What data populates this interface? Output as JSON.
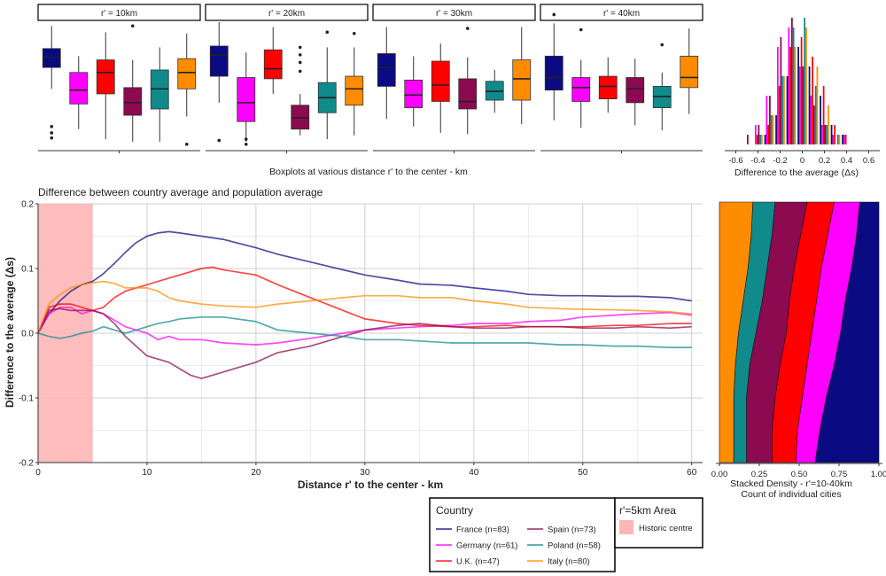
{
  "colors": {
    "France": "#0a0a82",
    "Germany": "#ff00ff",
    "UK": "#ff0000",
    "Spain": "#8b0a50",
    "Poland": "#108a8a",
    "Italy": "#ff8c00",
    "historic": "#ffb6b6"
  },
  "chart_data": [
    {
      "type": "boxplot",
      "id": "boxplots",
      "xlabel": "Boxplots at various distance r' to the center - km",
      "panels": [
        {
          "label": "r' = 10km",
          "boxes": [
            {
              "country": "France",
              "q1": 0.64,
              "median": 0.72,
              "q3": 0.79,
              "wlo": 0.47,
              "whi": 0.97,
              "outliers": [
                0.08,
                0.12,
                0.17
              ]
            },
            {
              "country": "Germany",
              "q1": 0.35,
              "median": 0.46,
              "q3": 0.6,
              "wlo": 0.15,
              "whi": 0.73,
              "outliers": []
            },
            {
              "country": "UK",
              "q1": 0.43,
              "median": 0.6,
              "q3": 0.7,
              "wlo": 0.07,
              "whi": 0.92,
              "outliers": []
            },
            {
              "country": "Spain",
              "q1": 0.26,
              "median": 0.36,
              "q3": 0.48,
              "wlo": 0.05,
              "whi": 0.7,
              "outliers": [
                0.97
              ]
            },
            {
              "country": "Poland",
              "q1": 0.31,
              "median": 0.47,
              "q3": 0.62,
              "wlo": 0.05,
              "whi": 0.8,
              "outliers": []
            },
            {
              "country": "Italy",
              "q1": 0.47,
              "median": 0.6,
              "q3": 0.71,
              "wlo": 0.25,
              "whi": 0.91,
              "outliers": [
                0.03
              ]
            }
          ]
        },
        {
          "label": "r' = 20km",
          "boxes": [
            {
              "country": "France",
              "q1": 0.57,
              "median": 0.74,
              "q3": 0.81,
              "wlo": 0.36,
              "whi": 1.0,
              "outliers": [
                0.06
              ]
            },
            {
              "country": "Germany",
              "q1": 0.21,
              "median": 0.36,
              "q3": 0.56,
              "wlo": 0.05,
              "whi": 0.76,
              "outliers": [
                0.03,
                0.07
              ]
            },
            {
              "country": "UK",
              "q1": 0.55,
              "median": 0.63,
              "q3": 0.78,
              "wlo": 0.43,
              "whi": 0.96,
              "outliers": []
            },
            {
              "country": "Spain",
              "q1": 0.15,
              "median": 0.24,
              "q3": 0.34,
              "wlo": 0.1,
              "whi": 0.43,
              "outliers": [
                0.61,
                0.68,
                0.74,
                0.8
              ]
            },
            {
              "country": "Poland",
              "q1": 0.28,
              "median": 0.4,
              "q3": 0.52,
              "wlo": 0.07,
              "whi": 0.8,
              "outliers": [
                0.92
              ]
            },
            {
              "country": "Italy",
              "q1": 0.34,
              "median": 0.47,
              "q3": 0.57,
              "wlo": 0.1,
              "whi": 0.8,
              "outliers": [
                0.91
              ]
            }
          ]
        },
        {
          "label": "r' = 30km",
          "boxes": [
            {
              "country": "France",
              "q1": 0.49,
              "median": 0.64,
              "q3": 0.75,
              "wlo": 0.23,
              "whi": 0.96,
              "outliers": []
            },
            {
              "country": "Germany",
              "q1": 0.32,
              "median": 0.42,
              "q3": 0.54,
              "wlo": 0.17,
              "whi": 0.73,
              "outliers": []
            },
            {
              "country": "UK",
              "q1": 0.37,
              "median": 0.5,
              "q3": 0.69,
              "wlo": 0.12,
              "whi": 0.83,
              "outliers": []
            },
            {
              "country": "Spain",
              "q1": 0.31,
              "median": 0.37,
              "q3": 0.55,
              "wlo": 0.11,
              "whi": 0.72,
              "outliers": [
                0.95
              ]
            },
            {
              "country": "Poland",
              "q1": 0.38,
              "median": 0.45,
              "q3": 0.53,
              "wlo": 0.28,
              "whi": 0.62,
              "outliers": []
            },
            {
              "country": "Italy",
              "q1": 0.38,
              "median": 0.55,
              "q3": 0.7,
              "wlo": 0.19,
              "whi": 0.96,
              "outliers": []
            }
          ]
        },
        {
          "label": "r' = 40km",
          "boxes": [
            {
              "country": "France",
              "q1": 0.46,
              "median": 0.56,
              "q3": 0.73,
              "wlo": 0.22,
              "whi": 0.99,
              "outliers": [
                1.06
              ]
            },
            {
              "country": "Germany",
              "q1": 0.37,
              "median": 0.48,
              "q3": 0.56,
              "wlo": 0.16,
              "whi": 0.7,
              "outliers": [
                0.94
              ]
            },
            {
              "country": "UK",
              "q1": 0.39,
              "median": 0.49,
              "q3": 0.57,
              "wlo": 0.28,
              "whi": 0.72,
              "outliers": []
            },
            {
              "country": "Spain",
              "q1": 0.36,
              "median": 0.47,
              "q3": 0.56,
              "wlo": 0.18,
              "whi": 0.71,
              "outliers": []
            },
            {
              "country": "Poland",
              "q1": 0.32,
              "median": 0.41,
              "q3": 0.49,
              "wlo": 0.14,
              "whi": 0.6,
              "outliers": [
                0.82
              ]
            },
            {
              "country": "Italy",
              "q1": 0.48,
              "median": 0.56,
              "q3": 0.73,
              "wlo": 0.27,
              "whi": 0.95,
              "outliers": []
            }
          ]
        }
      ]
    },
    {
      "type": "bar",
      "id": "histogram",
      "xlabel": "Difference to the average (Δs)",
      "xticks": [
        "-0.6",
        "-0.4",
        "-0.2",
        "0",
        "0.2",
        "0.4",
        "0.6"
      ],
      "xlim": [
        -0.7,
        0.7
      ],
      "bins": [
        -0.5,
        -0.4,
        -0.3,
        -0.2,
        -0.1,
        0.0,
        0.1,
        0.2,
        0.3,
        0.4
      ],
      "series": [
        {
          "name": "France",
          "values": [
            0,
            0,
            1,
            3,
            7,
            10,
            8,
            5,
            2,
            1
          ]
        },
        {
          "name": "Germany",
          "values": [
            0,
            2,
            5,
            10,
            12,
            8,
            5,
            2,
            1,
            1
          ]
        },
        {
          "name": "U.K.",
          "values": [
            0,
            1,
            2,
            6,
            10,
            11,
            9,
            6,
            2,
            1
          ]
        },
        {
          "name": "Spain",
          "values": [
            1,
            2,
            5,
            11,
            13,
            8,
            4,
            2,
            0,
            0
          ]
        },
        {
          "name": "Poland",
          "values": [
            0,
            1,
            3,
            7,
            12,
            13,
            6,
            2,
            1,
            0
          ]
        },
        {
          "name": "Italy",
          "values": [
            0,
            1,
            3,
            7,
            10,
            12,
            8,
            4,
            1,
            0
          ]
        }
      ]
    },
    {
      "type": "line",
      "id": "main",
      "title": "Difference between country average and population average",
      "xlabel": "Distance r' to the center - km",
      "ylabel": "Difference to the average (Δs)",
      "xlim": [
        0,
        61
      ],
      "ylim": [
        -0.2,
        0.2
      ],
      "xticks": [
        "0",
        "10",
        "20",
        "30",
        "40",
        "50",
        "60"
      ],
      "yticks": [
        "-0.2",
        "-0.1",
        "0.0",
        "0.1",
        "0.2"
      ],
      "shaded_region": {
        "from": 0,
        "to": 5,
        "label": "Historic centre"
      },
      "series": [
        {
          "name": "France",
          "legend": "France (n=83)",
          "x": [
            0,
            1,
            2,
            3,
            4,
            5,
            6,
            7,
            8,
            9,
            10,
            11,
            12,
            13,
            15,
            17,
            20,
            22,
            25,
            28,
            30,
            33,
            35,
            38,
            40,
            43,
            45,
            48,
            50,
            53,
            55,
            58,
            60
          ],
          "y": [
            0.0,
            0.03,
            0.05,
            0.065,
            0.075,
            0.08,
            0.092,
            0.108,
            0.125,
            0.14,
            0.15,
            0.155,
            0.157,
            0.155,
            0.15,
            0.145,
            0.132,
            0.122,
            0.11,
            0.098,
            0.09,
            0.082,
            0.076,
            0.074,
            0.07,
            0.065,
            0.06,
            0.058,
            0.058,
            0.057,
            0.057,
            0.055,
            0.05
          ]
        },
        {
          "name": "Germany",
          "legend": "Germany (n=61)",
          "x": [
            0,
            1,
            2,
            3,
            4,
            5,
            6,
            7,
            8,
            9,
            10,
            11,
            12,
            13,
            15,
            17,
            20,
            22,
            25,
            28,
            30,
            33,
            35,
            38,
            40,
            43,
            45,
            48,
            50,
            53,
            55,
            58,
            60
          ],
          "y": [
            0.0,
            0.03,
            0.04,
            0.04,
            0.03,
            0.035,
            0.03,
            0.02,
            0.01,
            0.005,
            0.0,
            -0.01,
            -0.005,
            -0.01,
            -0.01,
            -0.015,
            -0.018,
            -0.015,
            -0.008,
            0.0,
            0.005,
            0.008,
            0.01,
            0.012,
            0.015,
            0.015,
            0.018,
            0.02,
            0.025,
            0.028,
            0.03,
            0.032,
            0.028
          ]
        },
        {
          "name": "U.K.",
          "legend": "U.K. (n=47)",
          "x": [
            0,
            1,
            2,
            3,
            4,
            5,
            6,
            7,
            8,
            9,
            10,
            11,
            12,
            13,
            15,
            16,
            17,
            20,
            22,
            25,
            28,
            30,
            33,
            35,
            38,
            40,
            43,
            45,
            48,
            50,
            53,
            55,
            58,
            60
          ],
          "y": [
            0.0,
            0.04,
            0.045,
            0.045,
            0.04,
            0.035,
            0.04,
            0.055,
            0.065,
            0.07,
            0.075,
            0.08,
            0.085,
            0.09,
            0.1,
            0.102,
            0.098,
            0.09,
            0.075,
            0.055,
            0.035,
            0.022,
            0.015,
            0.012,
            0.01,
            0.01,
            0.012,
            0.01,
            0.01,
            0.01,
            0.012,
            0.012,
            0.015,
            0.015
          ]
        },
        {
          "name": "Spain",
          "legend": "Spain (n=73)",
          "x": [
            0,
            1,
            2,
            3,
            4,
            5,
            6,
            7,
            8,
            9,
            10,
            11,
            12,
            13,
            14,
            15,
            16,
            17,
            18,
            20,
            22,
            25,
            28,
            30,
            33,
            35,
            38,
            40,
            43,
            45,
            48,
            50,
            53,
            55,
            58,
            60
          ],
          "y": [
            0.0,
            0.035,
            0.038,
            0.035,
            0.035,
            0.035,
            0.03,
            0.015,
            -0.005,
            -0.02,
            -0.035,
            -0.04,
            -0.045,
            -0.055,
            -0.065,
            -0.07,
            -0.065,
            -0.06,
            -0.055,
            -0.045,
            -0.03,
            -0.02,
            -0.005,
            0.005,
            0.012,
            0.015,
            0.01,
            0.008,
            0.008,
            0.01,
            0.01,
            0.008,
            0.008,
            0.01,
            0.008,
            0.01
          ]
        },
        {
          "name": "Poland",
          "legend": "Poland (n=58)",
          "x": [
            0,
            1,
            2,
            3,
            4,
            5,
            6,
            7,
            8,
            9,
            10,
            11,
            12,
            13,
            15,
            17,
            20,
            22,
            25,
            28,
            30,
            33,
            35,
            38,
            40,
            43,
            45,
            48,
            50,
            53,
            55,
            58,
            60
          ],
          "y": [
            0.0,
            -0.005,
            -0.008,
            -0.005,
            0.0,
            0.003,
            0.01,
            0.005,
            0.0,
            0.005,
            0.01,
            0.015,
            0.018,
            0.022,
            0.025,
            0.025,
            0.018,
            0.005,
            0.0,
            -0.005,
            -0.01,
            -0.01,
            -0.012,
            -0.015,
            -0.015,
            -0.015,
            -0.015,
            -0.018,
            -0.018,
            -0.02,
            -0.02,
            -0.022,
            -0.022
          ]
        },
        {
          "name": "Italy",
          "legend": "Italy (n=80)",
          "x": [
            0,
            1,
            2,
            3,
            4,
            5,
            6,
            7,
            8,
            9,
            10,
            11,
            12,
            13,
            15,
            17,
            20,
            22,
            25,
            28,
            30,
            33,
            35,
            38,
            40,
            43,
            45,
            48,
            50,
            53,
            55,
            58,
            60
          ],
          "y": [
            0.0,
            0.045,
            0.06,
            0.07,
            0.075,
            0.078,
            0.08,
            0.077,
            0.07,
            0.07,
            0.07,
            0.065,
            0.055,
            0.05,
            0.045,
            0.042,
            0.04,
            0.045,
            0.05,
            0.055,
            0.058,
            0.058,
            0.055,
            0.055,
            0.05,
            0.045,
            0.04,
            0.038,
            0.037,
            0.036,
            0.035,
            0.033,
            0.03
          ]
        }
      ]
    },
    {
      "type": "area",
      "id": "stacked-density",
      "xlabel_line1": "Stacked Density - r'=10-40km",
      "xlabel_line2": "Count of individual cities",
      "xticks": [
        "0.00",
        "0.25",
        "0.50",
        "0.75",
        "1.00"
      ],
      "order": [
        "Italy",
        "Poland",
        "Spain",
        "U.K.",
        "Germany",
        "France"
      ],
      "levels": [
        0.0,
        0.125,
        0.25,
        0.375,
        0.5,
        0.625,
        0.75,
        0.875,
        1.0
      ],
      "boundaries": [
        [
          0.21,
          0.2,
          0.18,
          0.15,
          0.12,
          0.1,
          0.09,
          0.09,
          0.09
        ],
        [
          0.35,
          0.33,
          0.3,
          0.27,
          0.23,
          0.19,
          0.17,
          0.17,
          0.17
        ],
        [
          0.55,
          0.51,
          0.47,
          0.44,
          0.42,
          0.38,
          0.35,
          0.33,
          0.33
        ],
        [
          0.72,
          0.68,
          0.64,
          0.61,
          0.58,
          0.55,
          0.52,
          0.49,
          0.48
        ],
        [
          0.88,
          0.86,
          0.83,
          0.79,
          0.76,
          0.72,
          0.67,
          0.63,
          0.6
        ]
      ]
    }
  ],
  "legend": {
    "title": "Country",
    "entries": [
      {
        "name": "France",
        "label": "France (n=83)"
      },
      {
        "name": "Germany",
        "label": "Germany (n=61)"
      },
      {
        "name": "U.K.",
        "label": "U.K. (n=47)"
      },
      {
        "name": "Spain",
        "label": "Spain (n=73)"
      },
      {
        "name": "Poland",
        "label": "Poland (n=58)"
      },
      {
        "name": "Italy",
        "label": "Italy (n=80)"
      }
    ]
  },
  "legend2": {
    "title": "r'=5km Area",
    "label": "Historic centre"
  }
}
